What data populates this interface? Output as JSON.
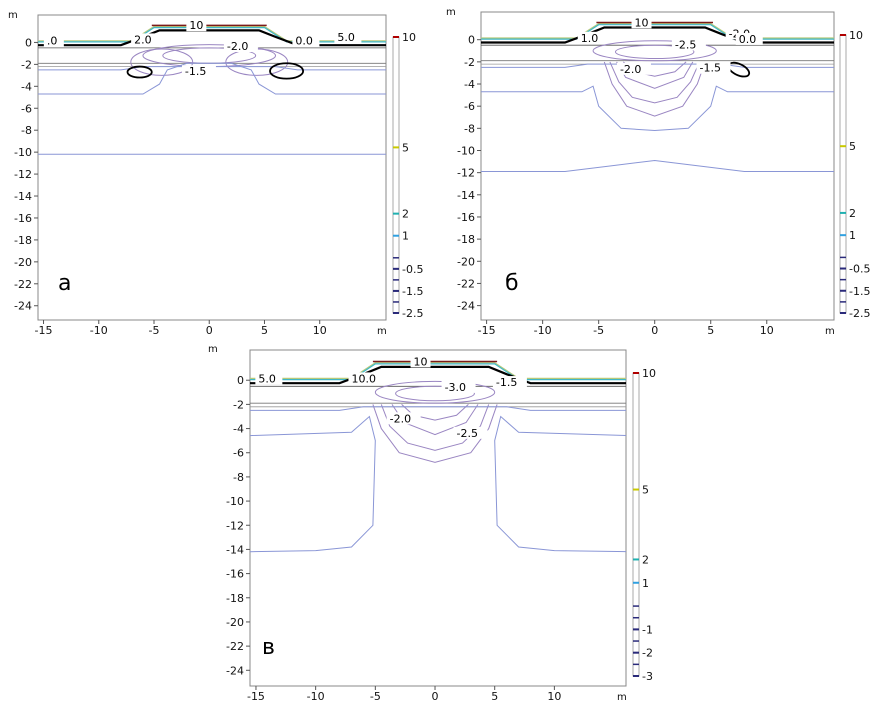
{
  "figure": {
    "x_unit": "m",
    "y_unit": "m"
  },
  "chart_data": [
    {
      "type": "contour",
      "panel_label": "а",
      "xlim": [
        -15.5,
        16
      ],
      "ylim": [
        -25.3,
        2.5
      ],
      "xticks": [
        -15,
        -10,
        -5,
        0,
        5,
        10
      ],
      "yticks": [
        0,
        -2,
        -4,
        -6,
        -8,
        -10,
        -12,
        -14,
        -16,
        -18,
        -20,
        -22,
        -24
      ],
      "xlabel": "m",
      "ylabel": "m",
      "contour_labels": [
        {
          "text": "10",
          "x": -1.8,
          "y": 1.3
        },
        {
          "text": "2.0",
          "x": -6.8,
          "y": 0.0
        },
        {
          "text": "-2.0",
          "x": 1.6,
          "y": -0.6
        },
        {
          "text": "0.0",
          "x": 7.8,
          "y": -0.1
        },
        {
          "text": "5.0",
          "x": 11.6,
          "y": 0.2
        },
        {
          "text": "-1.5",
          "x": -2.2,
          "y": -2.9
        },
        {
          "text": ".0",
          "x": -14.7,
          "y": -0.1
        }
      ],
      "colorbar": {
        "ticks": [
          "10",
          "5",
          "2",
          "1",
          "-0.5",
          "-1.5",
          "-2.5"
        ],
        "range": [
          -2.5,
          10
        ]
      }
    },
    {
      "type": "contour",
      "panel_label": "б",
      "xlim": [
        -15.5,
        16
      ],
      "ylim": [
        -25.3,
        2.5
      ],
      "xticks": [
        -15,
        -10,
        -5,
        0,
        5,
        10
      ],
      "yticks": [
        0,
        -2,
        -4,
        -6,
        -8,
        -10,
        -12,
        -14,
        -16,
        -18,
        -20,
        -22,
        -24
      ],
      "xlabel": "m",
      "ylabel": "m",
      "contour_labels": [
        {
          "text": "10",
          "x": -1.8,
          "y": 1.3
        },
        {
          "text": "1.0",
          "x": -6.6,
          "y": -0.1
        },
        {
          "text": "-2.0",
          "x": 6.6,
          "y": 0.3
        },
        {
          "text": "0.0",
          "x": 7.5,
          "y": -0.2
        },
        {
          "text": "-2.5",
          "x": 1.8,
          "y": -0.7
        },
        {
          "text": "-2.0",
          "x": -3.1,
          "y": -2.9
        },
        {
          "text": "-1.5",
          "x": 4.0,
          "y": -2.8
        }
      ],
      "colorbar": {
        "ticks": [
          "10",
          "5",
          "2",
          "1",
          "-0.5",
          "-1.5",
          "-2.5"
        ],
        "range": [
          -2.5,
          10
        ]
      }
    },
    {
      "type": "contour",
      "panel_label": "в",
      "xlim": [
        -15.5,
        16
      ],
      "ylim": [
        -25.3,
        2.5
      ],
      "xticks": [
        -15,
        -10,
        -5,
        0,
        5,
        10
      ],
      "yticks": [
        0,
        -2,
        -4,
        -6,
        -8,
        -10,
        -12,
        -14,
        -16,
        -18,
        -20,
        -22,
        -24
      ],
      "xlabel": "m",
      "ylabel": "m",
      "contour_labels": [
        {
          "text": "10",
          "x": -1.8,
          "y": 1.3
        },
        {
          "text": "5.0",
          "x": -14.8,
          "y": -0.1
        },
        {
          "text": "10.0",
          "x": -7.0,
          "y": -0.1
        },
        {
          "text": "-1.5",
          "x": 5.1,
          "y": -0.4
        },
        {
          "text": "-3.0",
          "x": 0.8,
          "y": -0.8
        },
        {
          "text": "-2.0",
          "x": -3.8,
          "y": -3.4
        },
        {
          "text": "-2.5",
          "x": 1.8,
          "y": -4.6
        }
      ],
      "colorbar": {
        "ticks": [
          "10",
          "5",
          "2",
          "1",
          "-1",
          "-2",
          "-3"
        ],
        "range": [
          -3,
          10
        ]
      }
    }
  ],
  "colors": {
    "axis": "#888888",
    "contour_light": "#8a96d6",
    "contour_mid": "#9a86c2",
    "contour_dark": "#000000",
    "surface_green": "#b8c97a",
    "surface_cyan": "#3fb7c7",
    "surface_red": "#7a1a1a",
    "colorbar_max": "#b00000",
    "colorbar_5": "#c8c800",
    "colorbar_2": "#20b0b0",
    "colorbar_1": "#30a0e0",
    "colorbar_neg": "#2a2a7a"
  }
}
